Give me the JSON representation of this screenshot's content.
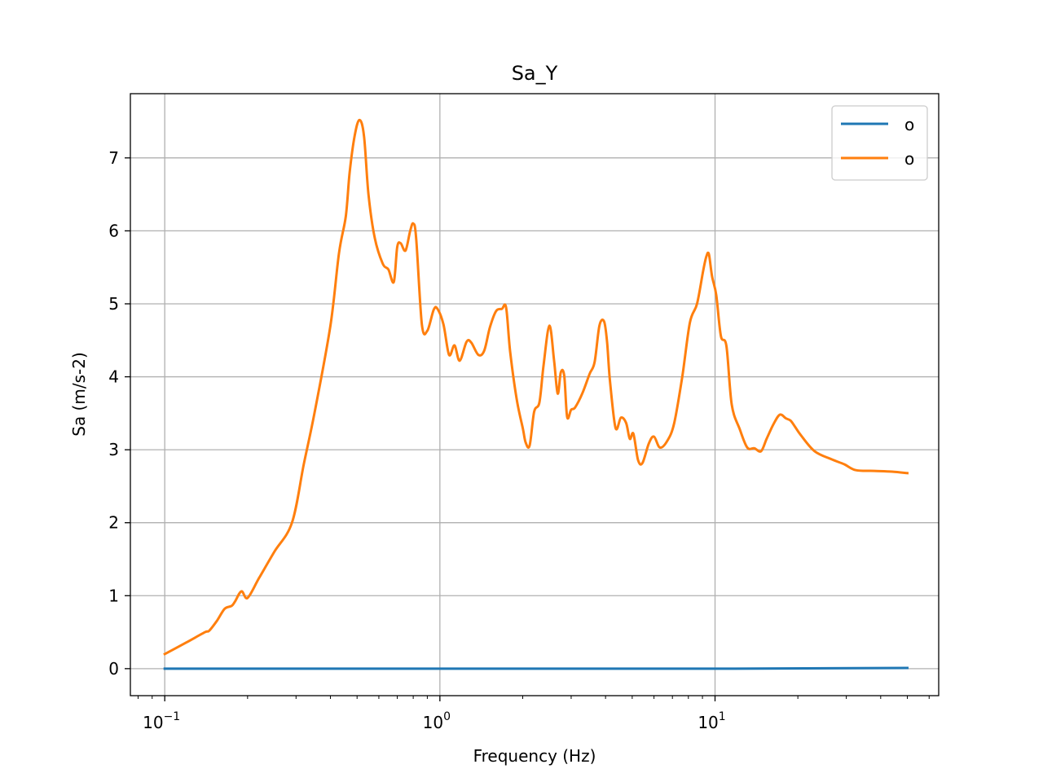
{
  "chart_data": {
    "type": "line",
    "title": "Sa_Y",
    "xlabel": "Frequency (Hz)",
    "ylabel": "Sa (m/s-2)",
    "xscale": "log",
    "xlim": [
      0.075,
      65
    ],
    "ylim": [
      -0.37,
      7.88
    ],
    "grid": true,
    "legend_position": "top-right",
    "x_tick_labels": [
      {
        "value": 0.1,
        "base": "10",
        "exp": "−1"
      },
      {
        "value": 1,
        "base": "10",
        "exp": "0"
      },
      {
        "value": 10,
        "base": "10",
        "exp": "1"
      }
    ],
    "y_ticks": [
      0,
      1,
      2,
      3,
      4,
      5,
      6,
      7
    ],
    "series": [
      {
        "name": "o",
        "color": "#1f77b4",
        "x": [
          0.1,
          1,
          10,
          50
        ],
        "y": [
          0.0,
          0.0,
          0.0,
          0.01
        ]
      },
      {
        "name": "o",
        "color": "#ff7f0e",
        "x": [
          0.1,
          0.12,
          0.14,
          0.145,
          0.155,
          0.165,
          0.175,
          0.18,
          0.19,
          0.2,
          0.22,
          0.25,
          0.29,
          0.32,
          0.35,
          0.4,
          0.43,
          0.455,
          0.47,
          0.49,
          0.51,
          0.53,
          0.55,
          0.58,
          0.62,
          0.65,
          0.68,
          0.7,
          0.72,
          0.75,
          0.78,
          0.8,
          0.82,
          0.86,
          0.9,
          0.95,
          0.98,
          1.03,
          1.08,
          1.13,
          1.18,
          1.25,
          1.3,
          1.38,
          1.45,
          1.52,
          1.6,
          1.68,
          1.74,
          1.8,
          1.9,
          2.0,
          2.05,
          2.12,
          2.2,
          2.3,
          2.38,
          2.5,
          2.6,
          2.68,
          2.75,
          2.83,
          2.9,
          3.0,
          3.1,
          3.3,
          3.5,
          3.65,
          3.8,
          3.95,
          4.05,
          4.15,
          4.35,
          4.55,
          4.75,
          4.9,
          5.05,
          5.25,
          5.45,
          5.75,
          6.0,
          6.3,
          6.7,
          7.1,
          7.6,
          8.1,
          8.6,
          9.05,
          9.3,
          9.5,
          9.75,
          10.1,
          10.5,
          11.0,
          11.5,
          12.3,
          13.1,
          13.9,
          14.7,
          15.4,
          16.3,
          17.2,
          18.1,
          18.8,
          19.5,
          20.5,
          23.0,
          26.5,
          29.5,
          32.5,
          38.0,
          44.0,
          50.0
        ],
        "y": [
          0.2,
          0.36,
          0.5,
          0.52,
          0.66,
          0.82,
          0.86,
          0.92,
          1.06,
          0.97,
          1.24,
          1.6,
          2.0,
          2.8,
          3.5,
          4.7,
          5.7,
          6.2,
          6.8,
          7.3,
          7.52,
          7.3,
          6.5,
          5.9,
          5.55,
          5.47,
          5.3,
          5.78,
          5.83,
          5.73,
          6.0,
          6.1,
          5.9,
          4.72,
          4.63,
          4.92,
          4.93,
          4.72,
          4.3,
          4.43,
          4.22,
          4.48,
          4.47,
          4.3,
          4.36,
          4.68,
          4.9,
          4.93,
          4.95,
          4.35,
          3.7,
          3.3,
          3.1,
          3.06,
          3.52,
          3.65,
          4.15,
          4.7,
          4.22,
          3.77,
          4.06,
          4.02,
          3.45,
          3.55,
          3.58,
          3.78,
          4.04,
          4.2,
          4.7,
          4.76,
          4.48,
          3.95,
          3.3,
          3.44,
          3.37,
          3.15,
          3.22,
          2.86,
          2.82,
          3.09,
          3.18,
          3.03,
          3.12,
          3.36,
          4.0,
          4.74,
          5.0,
          5.45,
          5.65,
          5.68,
          5.38,
          5.12,
          4.56,
          4.42,
          3.62,
          3.28,
          3.03,
          3.02,
          2.98,
          3.15,
          3.35,
          3.48,
          3.43,
          3.4,
          3.32,
          3.2,
          2.98,
          2.87,
          2.8,
          2.72,
          2.71,
          2.7,
          2.68
        ]
      }
    ]
  }
}
